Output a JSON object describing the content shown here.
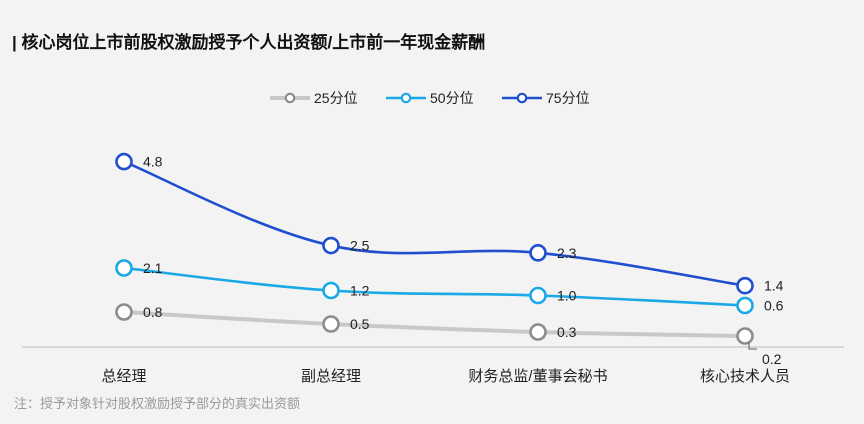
{
  "title": "| 核心岗位上市前股权激励授予个人出资额/上市前一年现金薪酬",
  "note": "注：授予对象针对股权激励授予部分的真实出资额",
  "chart_data": {
    "type": "line",
    "title": "| 核心岗位上市前股权激励授予个人出资额/上市前一年现金薪酬",
    "categories": [
      "总经理",
      "副总经理",
      "财务总监/董事会秘书",
      "核心技术人员"
    ],
    "series": [
      {
        "name": "25分位",
        "values": [
          0.8,
          0.5,
          0.3,
          0.2
        ],
        "color": "#c8c8c8",
        "marker_color": "#8c8c8c"
      },
      {
        "name": "50分位",
        "values": [
          2.1,
          1.2,
          1.0,
          0.6
        ],
        "color": "#1aa9e6",
        "marker_color": "#1aa9e6"
      },
      {
        "name": "75分位",
        "values": [
          4.8,
          2.5,
          2.3,
          1.4
        ],
        "color": "#1f4fcf",
        "marker_color": "#1f4fcf"
      }
    ],
    "value_labels": [
      [
        "0.8",
        "0.5",
        "0.3",
        "0.2"
      ],
      [
        "2.1",
        "1.2",
        "1.0",
        "0.6"
      ],
      [
        "4.8",
        "2.5",
        "2.3",
        "1.4"
      ]
    ],
    "legend_position": "top",
    "grid": false,
    "xlabel": "",
    "ylabel": ""
  }
}
